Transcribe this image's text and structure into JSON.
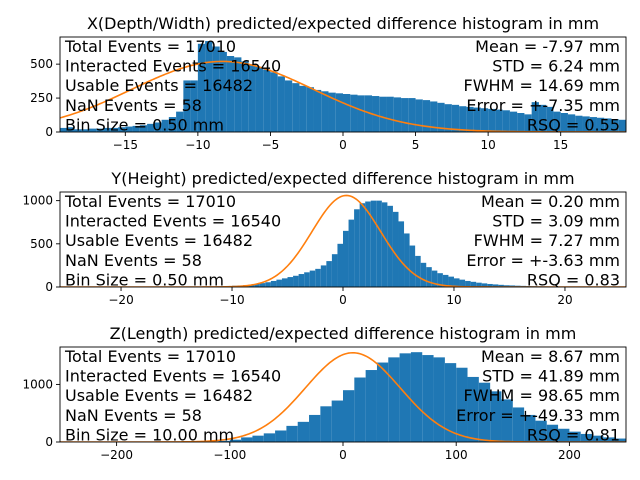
{
  "colors": {
    "bar": "#1f77b4",
    "fit": "#ff7f0e",
    "axis": "#000000",
    "background": "#ffffff"
  },
  "chart_data": [
    {
      "type": "bar",
      "title": "X(Depth/Width) predicted/expected difference histogram in mm",
      "xlim": [
        -19.5,
        19.5
      ],
      "ylim": [
        0,
        700
      ],
      "xticks": [
        -15,
        -10,
        -5,
        0,
        5,
        10,
        15
      ],
      "yticks": [
        0,
        250,
        500
      ],
      "bin_width": 0.5,
      "bins_start": -19.5,
      "values": [
        30,
        35,
        20,
        20,
        25,
        25,
        30,
        30,
        35,
        40,
        45,
        50,
        60,
        70,
        90,
        110,
        150,
        380,
        380,
        650,
        670,
        630,
        590,
        560,
        550,
        520,
        500,
        480,
        460,
        440,
        410,
        380,
        360,
        340,
        330,
        310,
        300,
        290,
        285,
        280,
        275,
        270,
        270,
        265,
        260,
        260,
        255,
        250,
        250,
        240,
        235,
        225,
        215,
        205,
        200,
        190,
        185,
        180,
        175,
        170,
        165,
        160,
        150,
        140,
        130,
        220,
        200,
        185,
        150,
        140,
        130,
        120,
        115,
        110,
        105,
        100,
        95,
        90,
        85,
        80,
        75,
        70,
        65,
        60,
        55,
        50,
        45,
        40,
        35,
        30,
        30,
        30,
        28,
        26,
        24,
        22,
        20,
        18,
        16,
        14,
        12,
        10,
        9,
        8,
        7,
        6,
        5,
        4,
        3,
        2,
        2,
        2,
        2,
        2,
        2,
        2,
        2,
        2,
        2,
        2,
        2,
        2,
        2,
        2,
        2,
        2,
        2,
        2,
        2,
        2,
        2,
        2,
        2,
        2,
        2,
        2,
        2,
        2,
        2,
        2,
        2,
        2,
        2,
        2,
        2,
        2,
        2,
        2,
        2,
        2
      ],
      "fit_curve": {
        "amplitude": 520,
        "mean": -8.3,
        "sigma": 6.24
      },
      "stats_left": [
        "Total Events = 17010",
        "Interacted Events = 16540",
        "Usable Events = 16482",
        "NaN Events = 58",
        "Bin Size = 0.50 mm"
      ],
      "stats_right": [
        "Mean = -7.97 mm",
        "STD = 6.24 mm",
        "FWHM = 14.69 mm",
        "Error = +-7.35 mm",
        "RSQ = 0.55"
      ]
    },
    {
      "type": "bar",
      "title": "Y(Height) predicted/expected difference histogram in mm",
      "xlim": [
        -25.5,
        25.5
      ],
      "ylim": [
        0,
        1100
      ],
      "xticks": [
        -20,
        -10,
        0,
        10,
        20
      ],
      "yticks": [
        0,
        500,
        1000
      ],
      "bin_width": 0.5,
      "bins_start": -12.5,
      "values": [
        5,
        6,
        8,
        10,
        12,
        15,
        18,
        22,
        28,
        35,
        45,
        55,
        70,
        85,
        100,
        115,
        130,
        150,
        170,
        190,
        210,
        250,
        300,
        380,
        500,
        650,
        780,
        900,
        970,
        990,
        1000,
        1000,
        980,
        940,
        870,
        760,
        620,
        480,
        360,
        280,
        230,
        190,
        160,
        140,
        120,
        100,
        85,
        70,
        60,
        50,
        42,
        35,
        30,
        25,
        20,
        18,
        15,
        13,
        11,
        10,
        8,
        7,
        6,
        5,
        4,
        3,
        3,
        2,
        2,
        2
      ],
      "fit_curve": {
        "amplitude": 1060,
        "mean": 0.3,
        "sigma": 3.09
      },
      "stats_left": [
        "Total Events = 17010",
        "Interacted Events = 16540",
        "Usable Events = 16482",
        "NaN Events = 58",
        "Bin Size = 0.50 mm"
      ],
      "stats_right": [
        "Mean = 0.20 mm",
        "STD = 3.09 mm",
        "FWHM = 7.27 mm",
        "Error = +-3.63 mm",
        "RSQ = 0.83"
      ]
    },
    {
      "type": "bar",
      "title": "Z(Length) predicted/expected difference histogram in mm",
      "xlim": [
        -250,
        250
      ],
      "ylim": [
        0,
        1650
      ],
      "xticks": [
        -200,
        -100,
        0,
        100,
        200
      ],
      "yticks": [
        0,
        1000
      ],
      "bin_width": 10,
      "bins_start": -160,
      "values": [
        2,
        3,
        4,
        6,
        10,
        20,
        40,
        80,
        110,
        150,
        200,
        280,
        350,
        470,
        620,
        720,
        900,
        1120,
        1250,
        1380,
        1470,
        1540,
        1560,
        1510,
        1470,
        1370,
        1290,
        1130,
        1030,
        880,
        740,
        600,
        470,
        370,
        300,
        230,
        180,
        140,
        110,
        80,
        60,
        40,
        25,
        15,
        10,
        6,
        4,
        3,
        2,
        2
      ],
      "fit_curve": {
        "amplitude": 1550,
        "mean": 8.67,
        "sigma": 41.89
      },
      "stats_left": [
        "Total Events = 17010",
        "Interacted Events = 16540",
        "Usable Events = 16482",
        "NaN Events = 58",
        "Bin Size = 10.00 mm"
      ],
      "stats_right": [
        "Mean = 8.67 mm",
        "STD = 41.89 mm",
        "FWHM = 98.65 mm",
        "Error = +-49.33 mm",
        "RSQ = 0.81"
      ]
    }
  ]
}
